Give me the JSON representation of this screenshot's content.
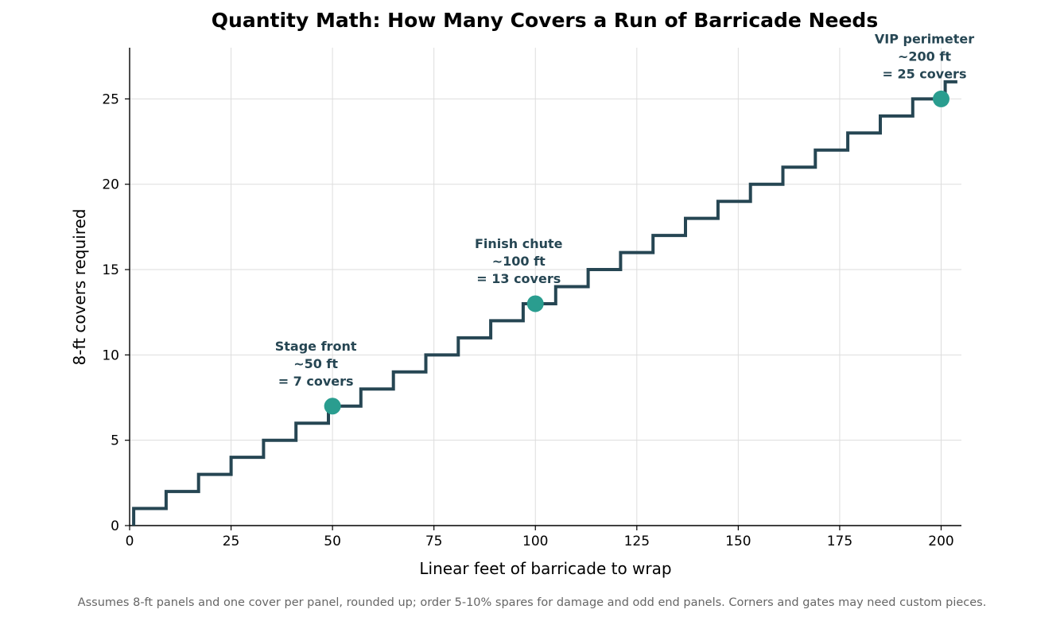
{
  "chart_data": {
    "type": "line",
    "title": "Quantity Math: How Many Covers a Run of Barricade Needs",
    "xlabel": "Linear feet of barricade to wrap",
    "ylabel": "8-ft covers required",
    "xlim": [
      0,
      205
    ],
    "ylim": [
      0,
      28
    ],
    "x_ticks": [
      0,
      25,
      50,
      75,
      100,
      125,
      150,
      175,
      200
    ],
    "y_ticks": [
      0,
      5,
      10,
      15,
      20,
      25
    ],
    "grid": true,
    "series": [
      {
        "style": "step",
        "color": "#264653",
        "x": [
          1,
          9,
          17,
          25,
          33,
          41,
          49,
          57,
          65,
          73,
          81,
          89,
          97,
          105,
          113,
          121,
          129,
          137,
          145,
          153,
          161,
          169,
          177,
          185,
          193,
          201,
          204
        ],
        "values": [
          1,
          2,
          3,
          4,
          5,
          6,
          7,
          8,
          9,
          10,
          11,
          12,
          13,
          14,
          15,
          16,
          17,
          18,
          19,
          20,
          21,
          22,
          23,
          24,
          25,
          26,
          26
        ]
      }
    ],
    "highlights": [
      {
        "x": 50,
        "y": 7,
        "label_lines": [
          "Stage front",
          "~50 ft",
          "= 7 covers"
        ],
        "color": "#2a9d8f"
      },
      {
        "x": 100,
        "y": 13,
        "label_lines": [
          "Finish chute",
          "~100 ft",
          "= 13 covers"
        ],
        "color": "#2a9d8f"
      },
      {
        "x": 200,
        "y": 25,
        "label_lines": [
          "VIP perimeter",
          "~200 ft",
          "= 25 covers"
        ],
        "color": "#2a9d8f"
      }
    ],
    "annotation_color": "#264653",
    "footnote": "Assumes 8-ft panels and one cover per panel, rounded up; order 5-10% spares for damage and odd end panels. Corners and gates may need custom pieces."
  }
}
